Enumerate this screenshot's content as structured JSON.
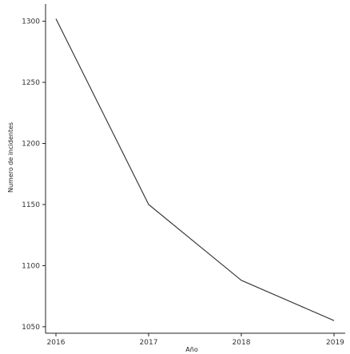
{
  "chart_data": {
    "type": "line",
    "title": "",
    "xlabel": "Año",
    "ylabel": "Numero de incidentes",
    "x": [
      2016,
      2017,
      2018,
      2019
    ],
    "x_tick_labels": [
      "2016",
      "2017",
      "2018",
      "2019"
    ],
    "y_ticks": [
      1050,
      1100,
      1150,
      1200,
      1250,
      1300
    ],
    "y_tick_labels": [
      "1050",
      "1100",
      "1150",
      "1200",
      "1250",
      "1300"
    ],
    "xlim": [
      2016,
      2019
    ],
    "ylim": [
      1045,
      1310
    ],
    "grid": false,
    "series": [
      {
        "values": [
          1302,
          1150,
          1088,
          1055
        ],
        "color": "#3a3a3a"
      }
    ]
  }
}
